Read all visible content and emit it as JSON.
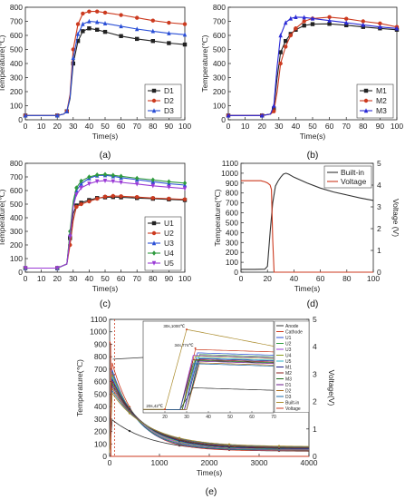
{
  "chart_data": [
    {
      "id": "a",
      "caption": "(a)",
      "type": "line",
      "xlabel": "Time(s)",
      "ylabel": "Temperature(℃)",
      "xlim": [
        0,
        100
      ],
      "ylim": [
        0,
        800
      ],
      "xticks": [
        "0",
        "10",
        "20",
        "30",
        "40",
        "50",
        "60",
        "70",
        "80",
        "90",
        "100"
      ],
      "yticks": [
        "0",
        "100",
        "200",
        "300",
        "400",
        "500",
        "600",
        "700",
        "800"
      ],
      "legend": "bottom-right",
      "series": [
        {
          "name": "D1",
          "color": "#222222",
          "marker": "square",
          "x": [
            0,
            10,
            20,
            24,
            26,
            28,
            30,
            33,
            36,
            40,
            45,
            50,
            60,
            70,
            80,
            90,
            100
          ],
          "y": [
            30,
            30,
            30,
            40,
            60,
            150,
            400,
            560,
            630,
            650,
            640,
            625,
            595,
            575,
            560,
            545,
            535
          ]
        },
        {
          "name": "D2",
          "color": "#cc3a1f",
          "marker": "circle",
          "x": [
            0,
            10,
            20,
            24,
            26,
            28,
            30,
            33,
            36,
            40,
            45,
            50,
            60,
            70,
            80,
            90,
            100
          ],
          "y": [
            30,
            30,
            30,
            40,
            60,
            180,
            500,
            680,
            755,
            770,
            770,
            762,
            745,
            725,
            705,
            690,
            680
          ]
        },
        {
          "name": "D3",
          "color": "#2a4fd6",
          "marker": "triangle",
          "x": [
            0,
            10,
            20,
            24,
            26,
            28,
            30,
            33,
            36,
            40,
            45,
            50,
            60,
            70,
            80,
            90,
            100
          ],
          "y": [
            30,
            30,
            30,
            40,
            60,
            160,
            440,
            610,
            680,
            700,
            695,
            685,
            665,
            645,
            630,
            615,
            605
          ]
        }
      ]
    },
    {
      "id": "b",
      "caption": "(b)",
      "type": "line",
      "xlabel": "Time(s)",
      "ylabel": "Temperature(℃)",
      "xlim": [
        0,
        100
      ],
      "ylim": [
        0,
        800
      ],
      "xticks": [
        "0",
        "10",
        "20",
        "30",
        "40",
        "50",
        "60",
        "70",
        "80",
        "90",
        "100"
      ],
      "yticks": [
        "0",
        "100",
        "200",
        "300",
        "400",
        "500",
        "600",
        "700",
        "800"
      ],
      "legend": "bottom-right",
      "series": [
        {
          "name": "M1",
          "color": "#222222",
          "marker": "square",
          "x": [
            0,
            10,
            20,
            25,
            27,
            29,
            31,
            34,
            37,
            40,
            45,
            50,
            60,
            70,
            80,
            90,
            100
          ],
          "y": [
            30,
            30,
            30,
            40,
            80,
            300,
            480,
            560,
            610,
            640,
            670,
            680,
            682,
            672,
            660,
            650,
            640
          ]
        },
        {
          "name": "M2",
          "color": "#cc3a1f",
          "marker": "circle",
          "x": [
            0,
            10,
            20,
            25,
            27,
            29,
            31,
            34,
            37,
            40,
            45,
            50,
            60,
            70,
            80,
            90,
            100
          ],
          "y": [
            30,
            30,
            30,
            40,
            60,
            200,
            400,
            520,
            600,
            650,
            700,
            720,
            730,
            718,
            700,
            685,
            660
          ]
        },
        {
          "name": "M3",
          "color": "#2a2ad6",
          "marker": "triangle",
          "x": [
            0,
            10,
            20,
            25,
            27,
            29,
            31,
            34,
            37,
            40,
            45,
            50,
            60,
            70,
            80,
            90,
            100
          ],
          "y": [
            30,
            30,
            30,
            40,
            100,
            380,
            600,
            690,
            720,
            730,
            728,
            720,
            705,
            690,
            675,
            660,
            650
          ]
        }
      ]
    },
    {
      "id": "c",
      "caption": "(c)",
      "type": "line",
      "xlabel": "Time(s)",
      "ylabel": "Temperature(℃)",
      "xlim": [
        0,
        100
      ],
      "ylim": [
        0,
        800
      ],
      "xticks": [
        "0",
        "10",
        "20",
        "30",
        "40",
        "50",
        "60",
        "70",
        "80",
        "90",
        "100"
      ],
      "yticks": [
        "0",
        "100",
        "200",
        "300",
        "400",
        "500",
        "600",
        "700",
        "800"
      ],
      "legend": "bottom-right",
      "series": [
        {
          "name": "U1",
          "color": "#222222",
          "marker": "square",
          "x": [
            0,
            10,
            20,
            26,
            28,
            30,
            32,
            35,
            40,
            45,
            50,
            55,
            60,
            70,
            80,
            90,
            100
          ],
          "y": [
            30,
            30,
            30,
            60,
            250,
            430,
            490,
            510,
            530,
            545,
            550,
            552,
            550,
            545,
            540,
            535,
            530
          ]
        },
        {
          "name": "U2",
          "color": "#cc3a1f",
          "marker": "circle",
          "x": [
            0,
            10,
            20,
            26,
            28,
            30,
            32,
            35,
            40,
            45,
            50,
            55,
            60,
            70,
            80,
            90,
            100
          ],
          "y": [
            30,
            30,
            30,
            60,
            200,
            380,
            480,
            500,
            520,
            540,
            555,
            560,
            558,
            552,
            545,
            540,
            535
          ]
        },
        {
          "name": "U3",
          "color": "#2a4fd6",
          "marker": "triangle",
          "x": [
            0,
            10,
            20,
            26,
            28,
            30,
            32,
            35,
            40,
            45,
            50,
            55,
            60,
            70,
            80,
            90,
            100
          ],
          "y": [
            30,
            30,
            30,
            60,
            280,
            500,
            600,
            650,
            690,
            710,
            712,
            705,
            695,
            680,
            665,
            650,
            640
          ]
        },
        {
          "name": "U4",
          "color": "#2e9a3e",
          "marker": "diamond",
          "x": [
            0,
            10,
            20,
            26,
            28,
            30,
            32,
            35,
            40,
            45,
            50,
            55,
            60,
            70,
            80,
            90,
            100
          ],
          "y": [
            30,
            30,
            30,
            60,
            300,
            520,
            620,
            670,
            700,
            715,
            718,
            712,
            705,
            690,
            678,
            665,
            655
          ]
        },
        {
          "name": "U5",
          "color": "#9a3ad6",
          "marker": "triangle-down",
          "x": [
            0,
            10,
            20,
            26,
            28,
            30,
            32,
            35,
            40,
            45,
            50,
            55,
            60,
            70,
            80,
            90,
            100
          ],
          "y": [
            30,
            30,
            30,
            60,
            260,
            480,
            570,
            620,
            650,
            668,
            672,
            668,
            660,
            648,
            635,
            625,
            615
          ]
        }
      ]
    },
    {
      "id": "d",
      "caption": "(d)",
      "type": "line",
      "xlabel": "Time(s)",
      "ylabel": "Temperature(℃)",
      "y2label": "Voltage (V)",
      "xlim": [
        0,
        100
      ],
      "ylim": [
        0,
        1100
      ],
      "y2lim": [
        0,
        5
      ],
      "xticks": [
        "0",
        "20",
        "40",
        "60",
        "80",
        "100"
      ],
      "yticks": [
        "0",
        "100",
        "200",
        "300",
        "400",
        "500",
        "600",
        "700",
        "800",
        "900",
        "1000",
        "1100"
      ],
      "y2ticks": [
        "0",
        "1",
        "2",
        "3",
        "4",
        "5"
      ],
      "legend": "top-right",
      "series": [
        {
          "name": "Built-in",
          "color": "#333333",
          "axis": "left",
          "x": [
            0,
            10,
            18,
            20,
            22,
            24,
            26,
            28,
            30,
            32,
            34,
            36,
            40,
            50,
            60,
            70,
            80,
            90,
            100
          ],
          "y": [
            28,
            28,
            30,
            60,
            400,
            700,
            870,
            920,
            960,
            990,
            1000,
            990,
            960,
            900,
            850,
            810,
            780,
            750,
            725
          ]
        },
        {
          "name": "Voltage",
          "color": "#cc3a1f",
          "axis": "right",
          "x": [
            0,
            10,
            15,
            18,
            20,
            21,
            22,
            23,
            24,
            25,
            30,
            40,
            60,
            80,
            100
          ],
          "y": [
            4.2,
            4.2,
            4.2,
            4.15,
            4.1,
            4.05,
            4.0,
            3.8,
            1.5,
            0.0,
            0.0,
            0.0,
            0.0,
            0.0,
            0.0
          ]
        }
      ]
    },
    {
      "id": "e",
      "caption": "(e)",
      "type": "line",
      "xlabel": "Time(s)",
      "ylabel": "Temperature(℃)",
      "y2label": "Voltage(V)",
      "xlim": [
        0,
        4000
      ],
      "ylim": [
        0,
        1100
      ],
      "y2lim": [
        0,
        5
      ],
      "xticks": [
        "0",
        "1000",
        "2000",
        "3000",
        "4000"
      ],
      "yticks": [
        "0",
        "100",
        "200",
        "300",
        "400",
        "500",
        "600",
        "700",
        "800",
        "900",
        "1000",
        "1100"
      ],
      "y2ticks": [
        "0",
        "1",
        "2",
        "3",
        "4",
        "5"
      ],
      "legend": "right",
      "series": [
        {
          "name": "Anode",
          "color": "#333333"
        },
        {
          "name": "Cathode",
          "color": "#cc3a1f"
        },
        {
          "name": "U1",
          "color": "#2a4fd6"
        },
        {
          "name": "U2",
          "color": "#2e9a3e"
        },
        {
          "name": "U3",
          "color": "#9a3ad6"
        },
        {
          "name": "U4",
          "color": "#8a9a1a"
        },
        {
          "name": "U5",
          "color": "#2ab0c6"
        },
        {
          "name": "M1",
          "color": "#1a1a8a"
        },
        {
          "name": "M2",
          "color": "#8a1a1a"
        },
        {
          "name": "M3",
          "color": "#1a6a1a"
        },
        {
          "name": "D1",
          "color": "#6a1a8a"
        },
        {
          "name": "D2",
          "color": "#aa6a1a"
        },
        {
          "name": "D3",
          "color": "#1a6aaa"
        },
        {
          "name": "Built-in",
          "color": "#aa8a2a"
        },
        {
          "name": "Voltage",
          "color": "#cc3a1f"
        }
      ],
      "inset": {
        "xlim": [
          10,
          70
        ],
        "xticks": [
          "20",
          "30",
          "40",
          "50",
          "60",
          "70"
        ],
        "annotations": [
          "30s,1000℃",
          "34s,774℃",
          "20s,42℃"
        ]
      }
    }
  ]
}
